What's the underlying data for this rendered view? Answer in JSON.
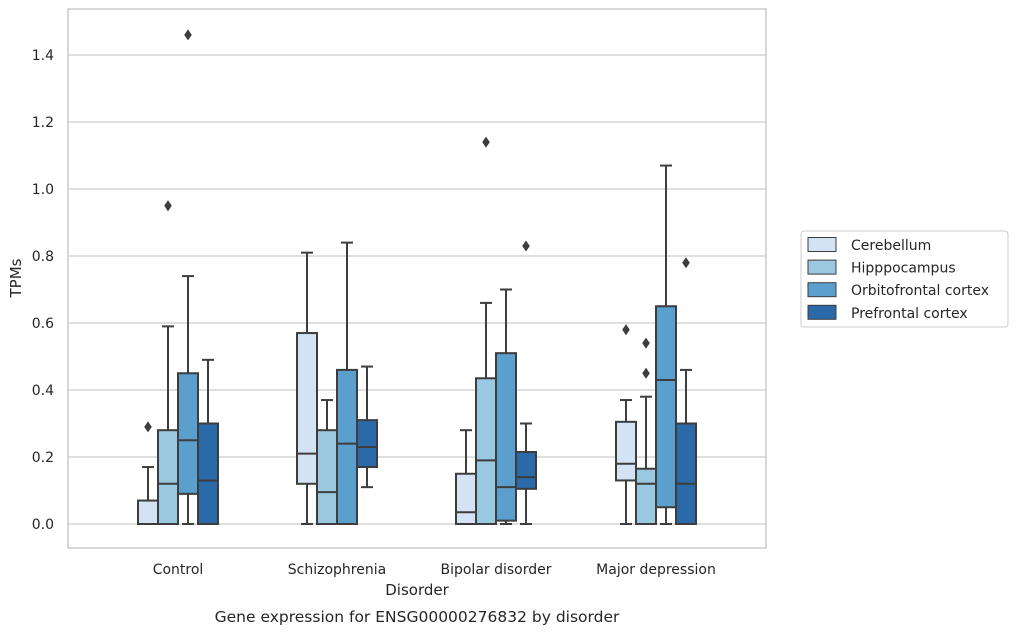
{
  "chart_data": {
    "type": "box",
    "caption": "Gene expression for ENSG00000276832 by disorder",
    "xlabel": "Disorder",
    "ylabel": "TPMs",
    "ylim": [
      -0.07,
      1.54
    ],
    "yticks": [
      0.0,
      0.2,
      0.4,
      0.6,
      0.8,
      1.0,
      1.2,
      1.4
    ],
    "ytick_labels": [
      "0.0",
      "0.2",
      "0.4",
      "0.6",
      "0.8",
      "1.0",
      "1.2",
      "1.4"
    ],
    "grid": "horizontal",
    "legend_position": "right",
    "categories": [
      "Control",
      "Schizophrenia",
      "Bipolar disorder",
      "Major depression"
    ],
    "series": [
      {
        "name": "Cerebellum",
        "color": "#d3e3f3",
        "boxes": [
          {
            "q1": 0.0,
            "median": 0.0,
            "q3": 0.07,
            "whisker_low": 0.0,
            "whisker_high": 0.17,
            "outliers": [
              0.29
            ]
          },
          {
            "q1": 0.12,
            "median": 0.21,
            "q3": 0.57,
            "whisker_low": 0.0,
            "whisker_high": 0.81,
            "outliers": []
          },
          {
            "q1": 0.0,
            "median": 0.035,
            "q3": 0.15,
            "whisker_low": 0.0,
            "whisker_high": 0.28,
            "outliers": []
          },
          {
            "q1": 0.13,
            "median": 0.18,
            "q3": 0.305,
            "whisker_low": 0.0,
            "whisker_high": 0.37,
            "outliers": [
              0.58
            ]
          }
        ]
      },
      {
        "name": "Hipppocampus",
        "color": "#9ac8e0",
        "boxes": [
          {
            "q1": 0.0,
            "median": 0.12,
            "q3": 0.28,
            "whisker_low": 0.0,
            "whisker_high": 0.59,
            "outliers": [
              0.95
            ]
          },
          {
            "q1": 0.0,
            "median": 0.095,
            "q3": 0.28,
            "whisker_low": 0.0,
            "whisker_high": 0.37,
            "outliers": []
          },
          {
            "q1": 0.0,
            "median": 0.19,
            "q3": 0.435,
            "whisker_low": 0.0,
            "whisker_high": 0.66,
            "outliers": [
              1.14
            ]
          },
          {
            "q1": 0.0,
            "median": 0.12,
            "q3": 0.165,
            "whisker_low": 0.0,
            "whisker_high": 0.38,
            "outliers": [
              0.45,
              0.54
            ]
          }
        ]
      },
      {
        "name": "Orbitofrontal cortex",
        "color": "#5a9fcd",
        "boxes": [
          {
            "q1": 0.09,
            "median": 0.25,
            "q3": 0.45,
            "whisker_low": 0.0,
            "whisker_high": 0.74,
            "outliers": [
              1.46
            ]
          },
          {
            "q1": 0.0,
            "median": 0.24,
            "q3": 0.46,
            "whisker_low": 0.0,
            "whisker_high": 0.84,
            "outliers": []
          },
          {
            "q1": 0.01,
            "median": 0.11,
            "q3": 0.51,
            "whisker_low": 0.0,
            "whisker_high": 0.7,
            "outliers": []
          },
          {
            "q1": 0.05,
            "median": 0.43,
            "q3": 0.65,
            "whisker_low": 0.0,
            "whisker_high": 1.07,
            "outliers": []
          }
        ]
      },
      {
        "name": "Prefrontal cortex",
        "color": "#2b6aa8",
        "boxes": [
          {
            "q1": 0.0,
            "median": 0.13,
            "q3": 0.3,
            "whisker_low": 0.0,
            "whisker_high": 0.49,
            "outliers": []
          },
          {
            "q1": 0.17,
            "median": 0.23,
            "q3": 0.31,
            "whisker_low": 0.11,
            "whisker_high": 0.47,
            "outliers": []
          },
          {
            "q1": 0.105,
            "median": 0.14,
            "q3": 0.215,
            "whisker_low": 0.0,
            "whisker_high": 0.3,
            "outliers": [
              0.83
            ]
          },
          {
            "q1": 0.0,
            "median": 0.12,
            "q3": 0.3,
            "whisker_low": 0.0,
            "whisker_high": 0.46,
            "outliers": [
              0.78
            ]
          }
        ]
      }
    ],
    "colors": {
      "grid": "#cccccc",
      "frame": "#cccccc",
      "line": "#3d3d3d",
      "text": "#262626"
    }
  }
}
